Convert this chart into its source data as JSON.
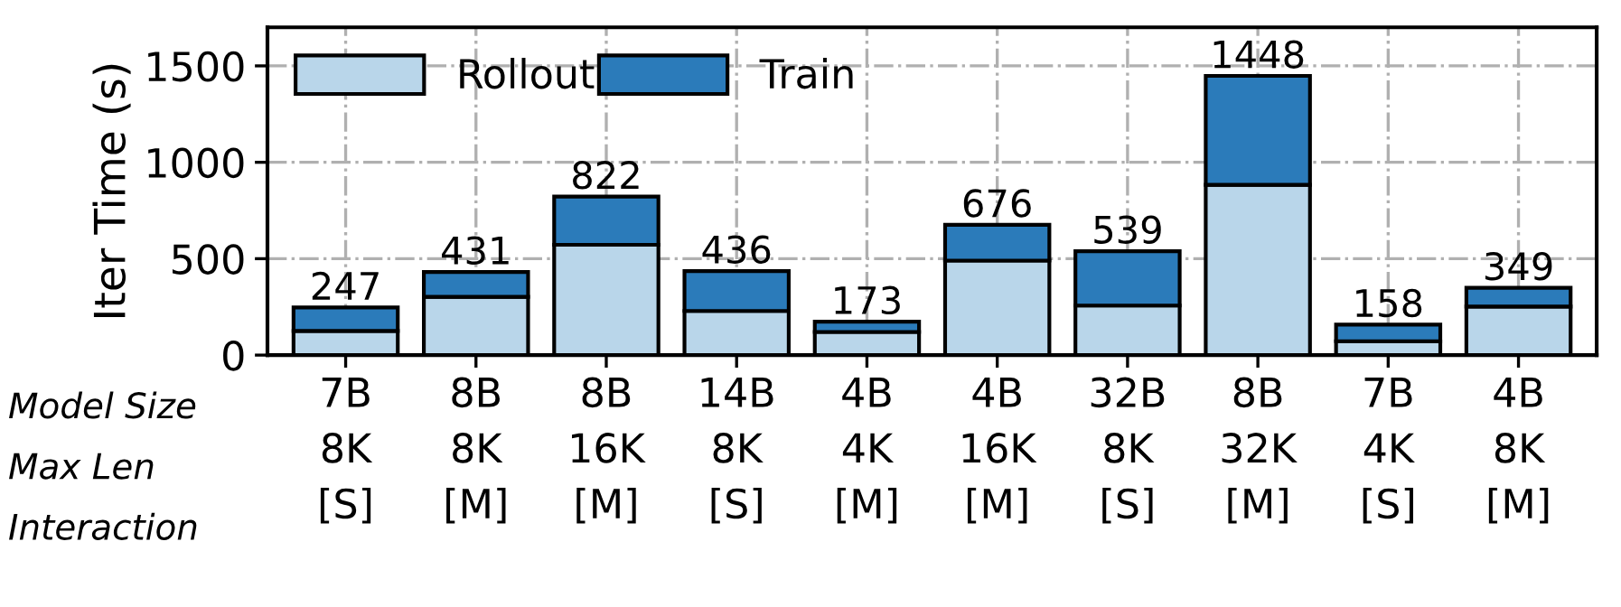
{
  "chart_data": {
    "type": "bar",
    "stacked": true,
    "ylabel": "Iter Time (s)",
    "categories": [
      "7B\n8K\n[S]",
      "8B\n8K\n[M]",
      "8B\n16K\n[M]",
      "14B\n8K\n[S]",
      "4B\n4K\n[M]",
      "4B\n16K\n[M]",
      "32B\n8K\n[S]",
      "8B\n32K\n[M]",
      "7B\n4K\n[S]",
      "4B\n8K\n[M]"
    ],
    "series": [
      {
        "name": "Rollout",
        "color": "#b9d6ea",
        "values": [
          125,
          302,
          572,
          229,
          120,
          490,
          257,
          883,
          72,
          252
        ]
      },
      {
        "name": "Train",
        "color": "#2b7bba",
        "values": [
          122,
          129,
          250,
          207,
          53,
          186,
          282,
          565,
          86,
          97
        ]
      }
    ],
    "totals": [
      "247",
      "431",
      "822",
      "436",
      "173",
      "676",
      "539",
      "1448",
      "158",
      "349"
    ],
    "annotations": [
      "Model Size",
      "Max Len",
      "Interaction"
    ],
    "ylim": [
      0,
      1700
    ],
    "yticks": [
      0,
      500,
      1000,
      1500
    ],
    "grid": true,
    "legend": "top left"
  }
}
